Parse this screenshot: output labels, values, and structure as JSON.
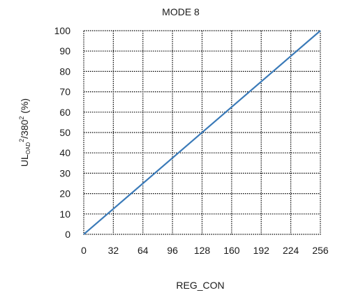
{
  "chart_data": {
    "type": "line",
    "title": "MODE 8",
    "xlabel": "REG_CON",
    "ylabel": {
      "base1": "UL",
      "sub1": "OAD",
      "sup1": "2",
      "mid": "/380",
      "sup2": "2",
      "end": " (%)"
    },
    "xlim": [
      0,
      256
    ],
    "ylim": [
      0,
      100
    ],
    "x_ticks": [
      0,
      32,
      64,
      96,
      128,
      160,
      192,
      224,
      256
    ],
    "y_ticks": [
      0,
      10,
      20,
      30,
      40,
      50,
      60,
      70,
      80,
      90,
      100
    ],
    "grid": true,
    "series": [
      {
        "x": [
          0,
          256
        ],
        "y": [
          0,
          100
        ],
        "color": "#3a7ab8"
      }
    ]
  }
}
